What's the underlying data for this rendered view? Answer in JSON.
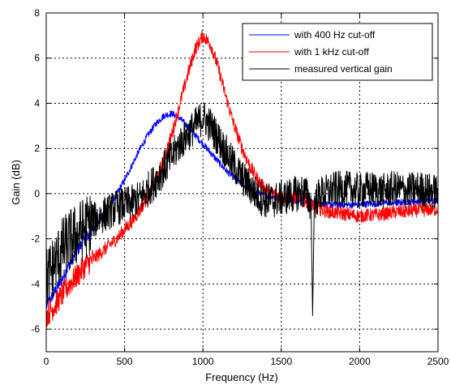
{
  "chart_data": {
    "type": "line",
    "title": "",
    "xlabel": "Frequency (Hz)",
    "ylabel": "Gain (dB)",
    "xlim": [
      0,
      2500
    ],
    "ylim": [
      -7,
      8
    ],
    "xticks": [
      0,
      500,
      1000,
      1500,
      2000,
      2500
    ],
    "yticks": [
      -6,
      -4,
      -2,
      0,
      2,
      4,
      6,
      8
    ],
    "grid": true,
    "legend_position": "top-right",
    "series": [
      {
        "name": "with 400 Hz cut-off",
        "color": "#0000ff",
        "noise": 0.15,
        "x": [
          0,
          50,
          100,
          150,
          200,
          250,
          300,
          350,
          400,
          450,
          500,
          550,
          600,
          650,
          700,
          750,
          800,
          850,
          900,
          950,
          1000,
          1050,
          1100,
          1150,
          1200,
          1250,
          1300,
          1350,
          1400,
          1450,
          1500,
          1550,
          1600,
          1650,
          1700,
          1750,
          1800,
          1850,
          1900,
          1950,
          2000,
          2050,
          2100,
          2150,
          2200,
          2250,
          2300,
          2350,
          2400,
          2450,
          2500
        ],
        "y": [
          -5.0,
          -4.4,
          -3.8,
          -3.1,
          -2.5,
          -2.0,
          -1.6,
          -1.1,
          -0.6,
          0.0,
          0.6,
          1.3,
          2.0,
          2.6,
          3.1,
          3.45,
          3.55,
          3.35,
          3.0,
          2.6,
          2.2,
          1.8,
          1.4,
          1.0,
          0.7,
          0.4,
          0.2,
          0.05,
          -0.1,
          -0.15,
          -0.2,
          -0.25,
          -0.3,
          -0.35,
          -0.4,
          -0.45,
          -0.5,
          -0.5,
          -0.5,
          -0.5,
          -0.5,
          -0.45,
          -0.45,
          -0.4,
          -0.4,
          -0.4,
          -0.35,
          -0.35,
          -0.3,
          -0.3,
          -0.3
        ]
      },
      {
        "name": "with 1 kHz cut-off",
        "color": "#ff0000",
        "noise": 0.3,
        "x": [
          0,
          50,
          100,
          150,
          200,
          250,
          300,
          350,
          400,
          450,
          500,
          550,
          600,
          650,
          700,
          750,
          800,
          850,
          900,
          950,
          1000,
          1050,
          1100,
          1150,
          1200,
          1250,
          1300,
          1350,
          1400,
          1450,
          1500,
          1550,
          1600,
          1650,
          1700,
          1750,
          1800,
          1850,
          1900,
          1950,
          2000,
          2050,
          2100,
          2150,
          2200,
          2250,
          2300,
          2350,
          2400,
          2450,
          2500
        ],
        "y": [
          -5.4,
          -5.0,
          -4.5,
          -4.0,
          -3.6,
          -3.2,
          -2.9,
          -2.6,
          -2.3,
          -2.0,
          -1.6,
          -1.2,
          -0.7,
          -0.1,
          0.6,
          1.5,
          2.6,
          3.9,
          5.2,
          6.4,
          7.0,
          6.6,
          5.5,
          4.2,
          3.0,
          2.0,
          1.2,
          0.6,
          0.2,
          0.0,
          -0.15,
          -0.2,
          -0.2,
          -0.3,
          -0.5,
          -0.7,
          -0.8,
          -0.85,
          -0.9,
          -0.95,
          -1.0,
          -0.95,
          -0.95,
          -0.9,
          -0.85,
          -0.8,
          -0.8,
          -0.75,
          -0.75,
          -0.7,
          -0.7
        ]
      },
      {
        "name": "measured vertical gain",
        "color": "#000000",
        "noise": 0.8,
        "x": [
          0,
          50,
          100,
          150,
          200,
          250,
          300,
          350,
          400,
          450,
          500,
          550,
          600,
          650,
          700,
          750,
          800,
          850,
          900,
          950,
          1000,
          1050,
          1100,
          1150,
          1200,
          1250,
          1300,
          1350,
          1400,
          1450,
          1500,
          1550,
          1600,
          1650,
          1690,
          1700,
          1710,
          1750,
          1800,
          1850,
          1900,
          1950,
          2000,
          2050,
          2100,
          2150,
          2200,
          2250,
          2300,
          2350,
          2400,
          2450,
          2500
        ],
        "y": [
          -3.8,
          -3.2,
          -2.5,
          -2.1,
          -1.8,
          -1.5,
          -1.2,
          -1.0,
          -0.8,
          -0.6,
          -0.5,
          -0.4,
          -0.2,
          0.2,
          0.6,
          1.1,
          1.6,
          2.2,
          2.6,
          3.0,
          3.4,
          3.0,
          2.4,
          1.8,
          1.2,
          0.7,
          0.3,
          -0.1,
          -0.3,
          -0.3,
          -0.2,
          -0.1,
          0.0,
          0.1,
          -0.5,
          -5.4,
          -0.4,
          0.0,
          0.1,
          0.2,
          0.2,
          0.2,
          0.1,
          0.2,
          0.2,
          0.1,
          0.2,
          0.2,
          0.1,
          0.2,
          0.2,
          0.1,
          0.1
        ]
      }
    ]
  }
}
